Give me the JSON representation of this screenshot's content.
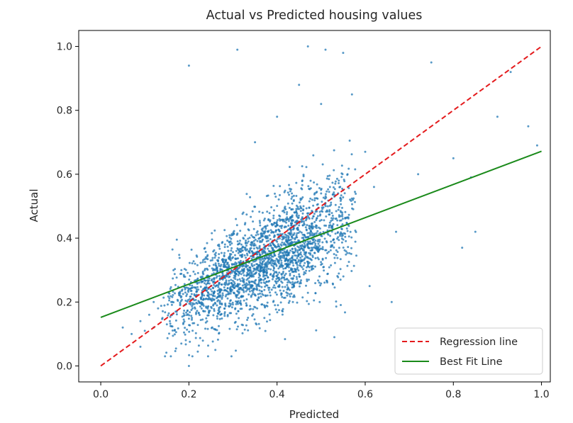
{
  "chart_data": {
    "type": "scatter",
    "title": "Actual vs Predicted housing values",
    "xlabel": "Predicted",
    "ylabel": "Actual",
    "xlim": [
      -0.05,
      1.02
    ],
    "ylim": [
      -0.05,
      1.05
    ],
    "xticks": [
      0.0,
      0.2,
      0.4,
      0.6,
      0.8,
      1.0
    ],
    "yticks": [
      0.0,
      0.2,
      0.4,
      0.6,
      0.8,
      1.0
    ],
    "xtick_labels": [
      "0.0",
      "0.2",
      "0.4",
      "0.6",
      "0.8",
      "1.0"
    ],
    "ytick_labels": [
      "0.0",
      "0.2",
      "0.4",
      "0.6",
      "0.8",
      "1.0"
    ],
    "grid": false,
    "legend_position": "lower-right",
    "colors": {
      "scatter": "#1f77b4",
      "regression": "#e41a1c",
      "best_fit": "#1a8a1a"
    },
    "scatter": {
      "name": "",
      "points": [
        [
          0.05,
          0.12
        ],
        [
          0.07,
          0.1
        ],
        [
          0.09,
          0.14
        ],
        [
          0.1,
          0.11
        ],
        [
          0.11,
          0.16
        ],
        [
          0.12,
          0.12
        ],
        [
          0.13,
          0.18
        ],
        [
          0.14,
          0.15
        ],
        [
          0.15,
          0.13
        ],
        [
          0.16,
          0.2
        ],
        [
          0.17,
          0.17
        ],
        [
          0.18,
          0.22
        ],
        [
          0.19,
          0.19
        ],
        [
          0.2,
          0.24
        ],
        [
          0.21,
          0.21
        ],
        [
          0.22,
          0.26
        ],
        [
          0.23,
          0.23
        ],
        [
          0.24,
          0.28
        ],
        [
          0.25,
          0.25
        ],
        [
          0.26,
          0.3
        ],
        [
          0.27,
          0.27
        ],
        [
          0.28,
          0.32
        ],
        [
          0.29,
          0.29
        ],
        [
          0.3,
          0.34
        ],
        [
          0.31,
          0.31
        ],
        [
          0.32,
          0.36
        ],
        [
          0.33,
          0.33
        ],
        [
          0.34,
          0.38
        ],
        [
          0.35,
          0.35
        ],
        [
          0.36,
          0.4
        ],
        [
          0.37,
          0.37
        ],
        [
          0.38,
          0.42
        ],
        [
          0.39,
          0.39
        ],
        [
          0.4,
          0.44
        ],
        [
          0.41,
          0.41
        ],
        [
          0.42,
          0.46
        ],
        [
          0.43,
          0.43
        ],
        [
          0.44,
          0.48
        ],
        [
          0.45,
          0.45
        ],
        [
          0.46,
          0.5
        ],
        [
          0.47,
          0.47
        ],
        [
          0.48,
          0.52
        ],
        [
          0.49,
          0.49
        ],
        [
          0.5,
          0.54
        ],
        [
          0.51,
          0.51
        ],
        [
          0.52,
          0.56
        ],
        [
          0.53,
          0.53
        ],
        [
          0.54,
          0.58
        ],
        [
          0.55,
          0.55
        ],
        [
          0.56,
          0.6
        ],
        [
          0.2,
          0.94
        ],
        [
          0.31,
          0.99
        ],
        [
          0.47,
          1.0
        ],
        [
          0.51,
          0.99
        ],
        [
          0.55,
          0.98
        ],
        [
          0.57,
          0.85
        ],
        [
          0.6,
          0.67
        ],
        [
          0.62,
          0.56
        ],
        [
          0.67,
          0.42
        ],
        [
          0.72,
          0.6
        ],
        [
          0.75,
          0.95
        ],
        [
          0.8,
          0.65
        ],
        [
          0.82,
          0.37
        ],
        [
          0.84,
          0.59
        ],
        [
          0.85,
          0.42
        ],
        [
          0.9,
          0.78
        ],
        [
          0.93,
          0.92
        ],
        [
          0.97,
          0.75
        ],
        [
          0.99,
          0.69
        ],
        [
          0.66,
          0.2
        ],
        [
          0.61,
          0.25
        ],
        [
          0.53,
          0.09
        ],
        [
          0.26,
          0.05
        ],
        [
          0.2,
          0.0
        ],
        [
          0.09,
          0.06
        ],
        [
          0.12,
          0.2
        ],
        [
          0.35,
          0.7
        ],
        [
          0.4,
          0.78
        ],
        [
          0.45,
          0.88
        ],
        [
          0.5,
          0.82
        ]
      ]
    },
    "series": [
      {
        "name": "Regression line",
        "style": "dashed",
        "x": [
          0.0,
          1.0
        ],
        "y": [
          0.0,
          1.0
        ]
      },
      {
        "name": "Best Fit Line",
        "style": "solid",
        "x": [
          0.0,
          1.0
        ],
        "y": [
          0.152,
          0.672
        ]
      }
    ]
  }
}
